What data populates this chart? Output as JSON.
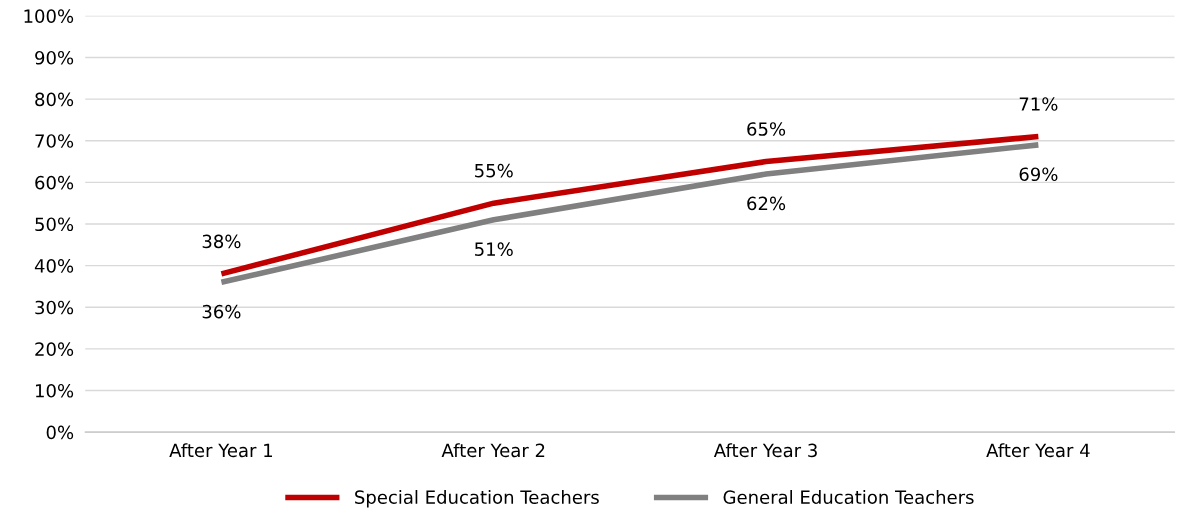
{
  "chart_data": {
    "type": "line",
    "categories": [
      "After Year 1",
      "After Year 2",
      "After Year 3",
      "After Year 4"
    ],
    "series": [
      {
        "name": "Special Education Teachers",
        "color": "#c00000",
        "values": [
          38,
          55,
          65,
          71
        ],
        "value_labels": [
          "38%",
          "55%",
          "65%",
          "71%"
        ]
      },
      {
        "name": "General Education Teachers",
        "color": "#808080",
        "values": [
          36,
          51,
          62,
          69
        ],
        "value_labels": [
          "36%",
          "51%",
          "62%",
          "69%"
        ]
      }
    ],
    "ylim": [
      0,
      100
    ],
    "yticks": [
      {
        "value": 0,
        "label": "0%"
      },
      {
        "value": 10,
        "label": "10%"
      },
      {
        "value": 20,
        "label": "20%"
      },
      {
        "value": 30,
        "label": "30%"
      },
      {
        "value": 40,
        "label": "40%"
      },
      {
        "value": 50,
        "label": "50%"
      },
      {
        "value": 60,
        "label": "60%"
      },
      {
        "value": 70,
        "label": "70%"
      },
      {
        "value": 80,
        "label": "80%"
      },
      {
        "value": 90,
        "label": "90%"
      },
      {
        "value": 100,
        "label": "100%"
      }
    ],
    "grid": "y",
    "legend": "bottom",
    "marker": "none",
    "line_style": "solid"
  }
}
